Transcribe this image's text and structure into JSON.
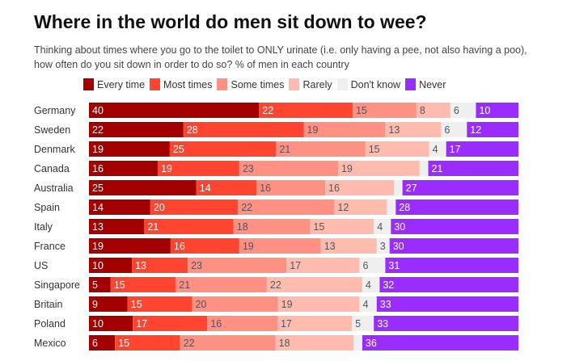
{
  "chart_data": {
    "type": "bar",
    "orientation": "horizontal-stacked-100",
    "title": "Where in the world do men sit down to wee?",
    "subtitle": "Thinking about times where you go to the toilet to ONLY urinate (i.e. only having a pee, not also having a poo), how often do you sit down in order to do so? % of men in each country",
    "categories": [
      "Germany",
      "Sweden",
      "Denmark",
      "Canada",
      "Australia",
      "Spain",
      "Italy",
      "France",
      "US",
      "Singapore",
      "Britain",
      "Poland",
      "Mexico"
    ],
    "series": [
      {
        "name": "Every time",
        "color": "#a30000",
        "text": "#ffffff",
        "values": [
          40,
          22,
          19,
          16,
          25,
          14,
          13,
          19,
          10,
          5,
          9,
          10,
          6
        ]
      },
      {
        "name": "Most times",
        "color": "#ff4530",
        "text": "#ffffff",
        "values": [
          22,
          28,
          25,
          19,
          14,
          20,
          21,
          16,
          13,
          15,
          15,
          17,
          15
        ]
      },
      {
        "name": "Some times",
        "color": "#ff9083",
        "text": "#555555",
        "values": [
          15,
          19,
          21,
          23,
          16,
          22,
          18,
          19,
          23,
          21,
          20,
          16,
          22
        ]
      },
      {
        "name": "Rarely",
        "color": "#ffbcae",
        "text": "#555555",
        "values": [
          8,
          13,
          15,
          19,
          16,
          12,
          15,
          13,
          17,
          22,
          19,
          17,
          18
        ]
      },
      {
        "name": "Don't know",
        "color": "#efefef",
        "text": "#555555",
        "values": [
          6,
          6,
          4,
          2,
          2,
          2,
          4,
          3,
          6,
          4,
          4,
          5,
          2
        ]
      },
      {
        "name": "Never",
        "color": "#9b2cff",
        "text": "#ffffff",
        "values": [
          10,
          12,
          17,
          21,
          27,
          28,
          30,
          30,
          31,
          32,
          33,
          33,
          36
        ]
      }
    ],
    "hidden_labels_below": 3,
    "legend_position": "top",
    "grid": false
  }
}
